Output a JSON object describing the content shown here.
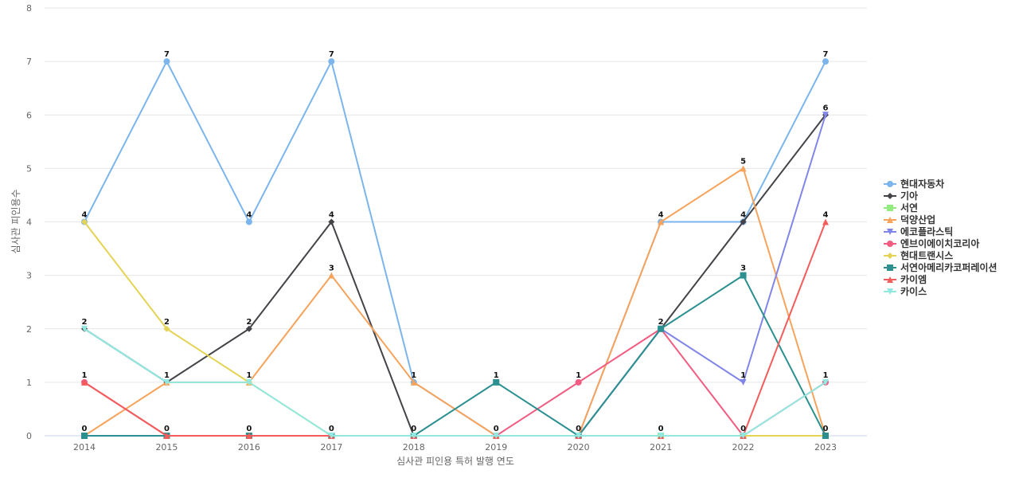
{
  "chart_data": {
    "type": "line",
    "title": "",
    "xlabel": "심사관 피인용 특허 발행 연도",
    "ylabel": "심사관 피인용수",
    "x": [
      "2014",
      "2015",
      "2016",
      "2017",
      "2018",
      "2019",
      "2020",
      "2021",
      "2022",
      "2023"
    ],
    "ylim": [
      0,
      8
    ],
    "yticks": [
      0,
      1,
      2,
      3,
      4,
      5,
      6,
      7,
      8
    ],
    "grid": true,
    "legend": "right",
    "series": [
      {
        "name": "현대자동차",
        "color": "#7cb5ec",
        "marker": "circle",
        "values": [
          4,
          7,
          4,
          7,
          1,
          0,
          0,
          4,
          4,
          7
        ]
      },
      {
        "name": "기아",
        "color": "#434348",
        "marker": "diamond",
        "values": [
          2,
          1,
          2,
          4,
          0,
          0,
          0,
          2,
          4,
          6
        ]
      },
      {
        "name": "서연",
        "color": "#90ed7d",
        "marker": "square",
        "values": [
          0,
          0,
          0,
          0,
          0,
          0,
          0,
          0,
          0,
          0
        ]
      },
      {
        "name": "덕양산업",
        "color": "#f7a35c",
        "marker": "triangle",
        "values": [
          0,
          1,
          1,
          3,
          1,
          0,
          0,
          4,
          5,
          0
        ]
      },
      {
        "name": "에코플라스틱",
        "color": "#8085e9",
        "marker": "triangle-down",
        "values": [
          0,
          0,
          0,
          0,
          0,
          0,
          0,
          2,
          1,
          6
        ]
      },
      {
        "name": "엔브이에이치코리아",
        "color": "#f15c80",
        "marker": "circle",
        "values": [
          1,
          0,
          0,
          0,
          0,
          0,
          1,
          2,
          0,
          1
        ]
      },
      {
        "name": "현대트랜시스",
        "color": "#e4d354",
        "marker": "diamond",
        "values": [
          4,
          2,
          1,
          0,
          0,
          0,
          0,
          0,
          0,
          0
        ]
      },
      {
        "name": "서연아메리카코퍼레이션",
        "color": "#2b908f",
        "marker": "square",
        "values": [
          0,
          0,
          0,
          0,
          0,
          1,
          0,
          2,
          3,
          0
        ]
      },
      {
        "name": "카이엠",
        "color": "#f45b5b",
        "marker": "triangle",
        "values": [
          1,
          0,
          0,
          0,
          0,
          0,
          0,
          0,
          0,
          4
        ]
      },
      {
        "name": "카이스",
        "color": "#91e8e1",
        "marker": "triangle-down",
        "values": [
          2,
          1,
          1,
          0,
          0,
          0,
          0,
          0,
          0,
          1
        ]
      }
    ],
    "point_labels": [
      {
        "x": "2014",
        "value": 4
      },
      {
        "x": "2014",
        "value": 2
      },
      {
        "x": "2014",
        "value": 1
      },
      {
        "x": "2014",
        "value": 0
      },
      {
        "x": "2015",
        "value": 7
      },
      {
        "x": "2015",
        "value": 2
      },
      {
        "x": "2015",
        "value": 1
      },
      {
        "x": "2015",
        "value": 0
      },
      {
        "x": "2016",
        "value": 4
      },
      {
        "x": "2016",
        "value": 2
      },
      {
        "x": "2016",
        "value": 1
      },
      {
        "x": "2016",
        "value": 0
      },
      {
        "x": "2017",
        "value": 7
      },
      {
        "x": "2017",
        "value": 4
      },
      {
        "x": "2017",
        "value": 3
      },
      {
        "x": "2017",
        "value": 0
      },
      {
        "x": "2018",
        "value": 1
      },
      {
        "x": "2018",
        "value": 0
      },
      {
        "x": "2019",
        "value": 1
      },
      {
        "x": "2019",
        "value": 0
      },
      {
        "x": "2020",
        "value": 1
      },
      {
        "x": "2020",
        "value": 0
      },
      {
        "x": "2021",
        "value": 4
      },
      {
        "x": "2021",
        "value": 2
      },
      {
        "x": "2021",
        "value": 0
      },
      {
        "x": "2022",
        "value": 5
      },
      {
        "x": "2022",
        "value": 4
      },
      {
        "x": "2022",
        "value": 3
      },
      {
        "x": "2022",
        "value": 1
      },
      {
        "x": "2022",
        "value": 0
      },
      {
        "x": "2023",
        "value": 7
      },
      {
        "x": "2023",
        "value": 6
      },
      {
        "x": "2023",
        "value": 4
      },
      {
        "x": "2023",
        "value": 1
      },
      {
        "x": "2023",
        "value": 0
      }
    ]
  }
}
